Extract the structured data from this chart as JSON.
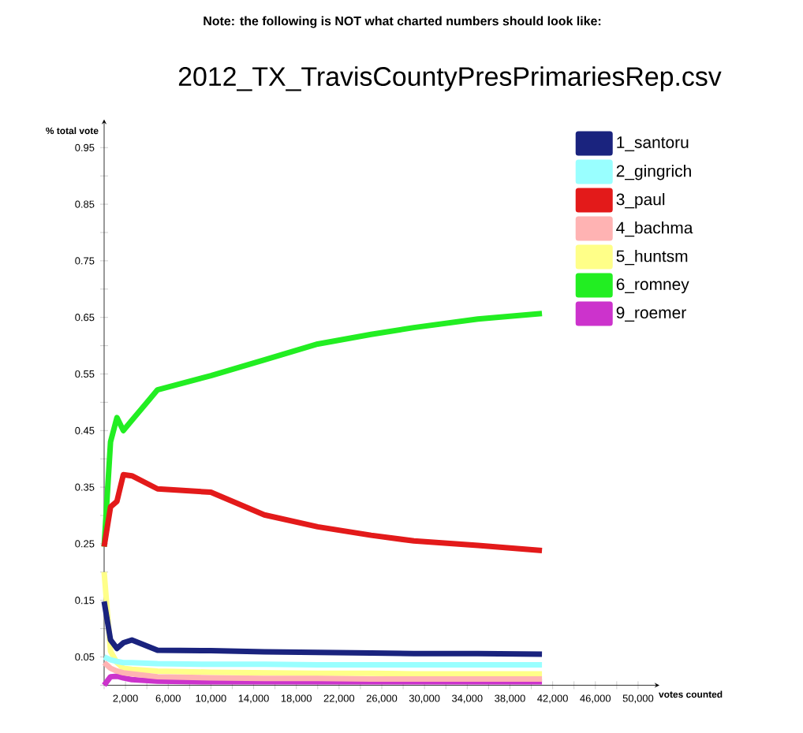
{
  "chart_data": {
    "type": "line",
    "title": "2012_TX_TravisCountyPresPrimariesRep.csv",
    "annotations": [
      "Note: the following is NOT what charted numbers should look like:"
    ],
    "xlabel": "votes counted",
    "ylabel": "% total vote",
    "x": [
      0,
      600,
      1200,
      1800,
      2600,
      5000,
      10000,
      15000,
      20000,
      25000,
      29000,
      35000,
      41000
    ],
    "series": [
      {
        "name": "1_santoru",
        "color": "#1a237e",
        "values": [
          0.148,
          0.08,
          0.065,
          0.075,
          0.08,
          0.062,
          0.061,
          0.059,
          0.058,
          0.057,
          0.056,
          0.056,
          0.055
        ]
      },
      {
        "name": "2_gingrich",
        "color": "#99ffff",
        "values": [
          0.05,
          0.045,
          0.042,
          0.04,
          0.04,
          0.038,
          0.037,
          0.037,
          0.036,
          0.036,
          0.036,
          0.036,
          0.036
        ]
      },
      {
        "name": "3_paul",
        "color": "#e31a1a",
        "values": [
          0.245,
          0.315,
          0.325,
          0.372,
          0.37,
          0.347,
          0.341,
          0.301,
          0.28,
          0.265,
          0.255,
          0.247,
          0.238
        ]
      },
      {
        "name": "4_bachma",
        "color": "#ffb3b3",
        "values": [
          0.04,
          0.03,
          0.025,
          0.022,
          0.02,
          0.015,
          0.013,
          0.012,
          0.012,
          0.011,
          0.011,
          0.011,
          0.011
        ]
      },
      {
        "name": "5_huntsm",
        "color": "#ffff88",
        "values": [
          0.2,
          0.06,
          0.04,
          0.03,
          0.028,
          0.025,
          0.023,
          0.022,
          0.021,
          0.021,
          0.02,
          0.02,
          0.02
        ]
      },
      {
        "name": "6_romney",
        "color": "#22ee22",
        "values": [
          0.245,
          0.43,
          0.473,
          0.45,
          0.468,
          0.522,
          0.547,
          0.575,
          0.603,
          0.62,
          0.632,
          0.647,
          0.657
        ]
      },
      {
        "name": "9_roemer",
        "color": "#cc33cc",
        "values": [
          0.0,
          0.015,
          0.016,
          0.013,
          0.01,
          0.007,
          0.006,
          0.006,
          0.006,
          0.006,
          0.006,
          0.006,
          0.006
        ]
      }
    ],
    "xlim": [
      0,
      52000
    ],
    "ylim": [
      0,
      1.0
    ],
    "xticks": [
      {
        "value": 0,
        "label": null
      },
      {
        "value": 2000,
        "label": "2,000"
      },
      {
        "value": 4000,
        "label": null
      },
      {
        "value": 6000,
        "label": "6,000"
      },
      {
        "value": 8000,
        "label": null
      },
      {
        "value": 10000,
        "label": "10,000"
      },
      {
        "value": 12000,
        "label": null
      },
      {
        "value": 14000,
        "label": "14,000"
      },
      {
        "value": 16000,
        "label": null
      },
      {
        "value": 18000,
        "label": "18,000"
      },
      {
        "value": 20000,
        "label": null
      },
      {
        "value": 22000,
        "label": "22,000"
      },
      {
        "value": 24000,
        "label": null
      },
      {
        "value": 26000,
        "label": "26,000"
      },
      {
        "value": 28000,
        "label": null
      },
      {
        "value": 30000,
        "label": "30,000"
      },
      {
        "value": 32000,
        "label": null
      },
      {
        "value": 34000,
        "label": "34,000"
      },
      {
        "value": 36000,
        "label": null
      },
      {
        "value": 38000,
        "label": "38,000"
      },
      {
        "value": 40000,
        "label": null
      },
      {
        "value": 42000,
        "label": "42,000"
      },
      {
        "value": 44000,
        "label": null
      },
      {
        "value": 46000,
        "label": "46,000"
      },
      {
        "value": 48000,
        "label": null
      },
      {
        "value": 50000,
        "label": "50,000"
      }
    ],
    "yticks": [
      {
        "value": 0,
        "label": null
      },
      0.05,
      {
        "value": 0.1,
        "label": null
      },
      0.15,
      {
        "value": 0.2,
        "label": null
      },
      0.25,
      {
        "value": 0.3,
        "label": null
      },
      0.35,
      {
        "value": 0.4,
        "label": null
      },
      0.45,
      {
        "value": 0.5,
        "label": null
      },
      0.55,
      {
        "value": 0.6,
        "label": null
      },
      0.65,
      {
        "value": 0.7,
        "label": null
      },
      0.75,
      {
        "value": 0.8,
        "label": null
      },
      0.85,
      {
        "value": 0.9,
        "label": null
      },
      0.95
    ],
    "legend": "top right",
    "grid": false,
    "marker": "none",
    "line_style": "solid"
  }
}
